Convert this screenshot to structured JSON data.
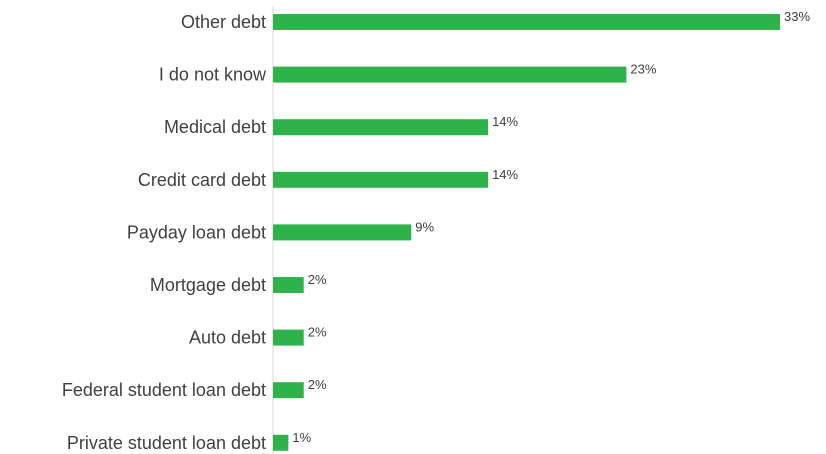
{
  "chart_data": {
    "type": "bar",
    "orientation": "horizontal",
    "categories": [
      "Other debt",
      "I do not know",
      "Medical debt",
      "Credit card debt",
      "Payday loan debt",
      "Mortgage debt",
      "Auto debt",
      "Federal student loan debt",
      "Private student loan debt"
    ],
    "values": [
      33,
      23,
      14,
      14,
      9,
      2,
      2,
      2,
      1
    ],
    "value_labels": [
      "33%",
      "23%",
      "14%",
      "14%",
      "9%",
      "2%",
      "2%",
      "2%",
      "1%"
    ],
    "unit": "%",
    "title": "",
    "xlabel": "",
    "ylabel": "",
    "xlim": [
      0,
      33
    ],
    "grid": false,
    "legend": "none",
    "colors": {
      "bar": "#2db34a",
      "text": "#404040"
    }
  }
}
